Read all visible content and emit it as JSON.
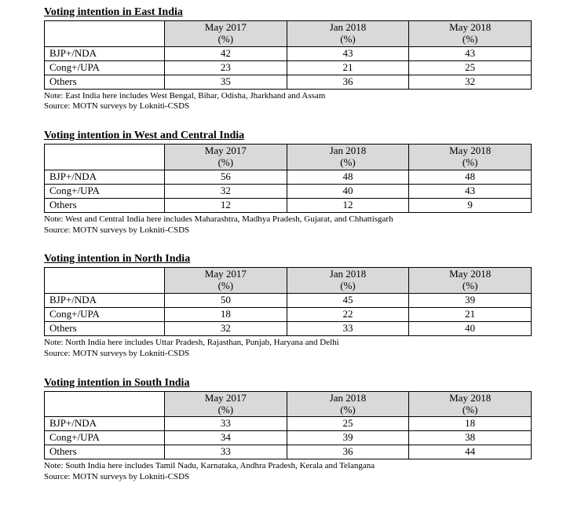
{
  "tables": [
    {
      "title": "Voting intention in East India",
      "periods": [
        "May 2017",
        "Jan 2018",
        "May 2018"
      ],
      "unit": "(%)",
      "rows": [
        {
          "label": "BJP+/NDA",
          "values": [
            "42",
            "43",
            "43"
          ]
        },
        {
          "label": "Cong+/UPA",
          "values": [
            "23",
            "21",
            "25"
          ]
        },
        {
          "label": "Others",
          "values": [
            "35",
            "36",
            "32"
          ]
        }
      ],
      "note": "Note: East India here includes West Bengal, Bihar, Odisha, Jharkhand and Assam",
      "source": "Source: MOTN surveys by Lokniti-CSDS"
    },
    {
      "title": "Voting intention in West and Central India",
      "periods": [
        "May 2017",
        "Jan 2018",
        "May 2018"
      ],
      "unit": "(%)",
      "rows": [
        {
          "label": "BJP+/NDA",
          "values": [
            "56",
            "48",
            "48"
          ]
        },
        {
          "label": "Cong+/UPA",
          "values": [
            "32",
            "40",
            "43"
          ]
        },
        {
          "label": "Others",
          "values": [
            "12",
            "12",
            "9"
          ]
        }
      ],
      "note": "Note: West and Central India here includes Maharashtra, Madhya Pradesh, Gujarat, and Chhattisgarh",
      "source": "Source: MOTN surveys by Lokniti-CSDS"
    },
    {
      "title": "Voting intention in North India",
      "periods": [
        "May 2017",
        "Jan 2018",
        "May 2018"
      ],
      "unit": "(%)",
      "rows": [
        {
          "label": "BJP+/NDA",
          "values": [
            "50",
            "45",
            "39"
          ]
        },
        {
          "label": "Cong+/UPA",
          "values": [
            "18",
            "22",
            "21"
          ]
        },
        {
          "label": "Others",
          "values": [
            "32",
            "33",
            "40"
          ]
        }
      ],
      "note": "Note: North India here includes Uttar Pradesh, Rajasthan, Punjab, Haryana and Delhi",
      "source": "Source: MOTN surveys by Lokniti-CSDS"
    },
    {
      "title": "Voting intention in South India",
      "periods": [
        "May 2017",
        "Jan 2018",
        "May 2018"
      ],
      "unit": "(%)",
      "rows": [
        {
          "label": "BJP+/NDA",
          "values": [
            "33",
            "25",
            "18"
          ]
        },
        {
          "label": "Cong+/UPA",
          "values": [
            "34",
            "39",
            "38"
          ]
        },
        {
          "label": "Others",
          "values": [
            "33",
            "36",
            "44"
          ]
        }
      ],
      "note": "Note: South India here includes Tamil Nadu, Karnataka, Andhra Pradesh, Kerala and Telangana",
      "source": "Source: MOTN surveys by Lokniti-CSDS"
    }
  ],
  "style": {
    "header_bg": "#d9d9d9",
    "border_color": "#000000",
    "font_family": "Times New Roman",
    "title_fontsize_pt": 11,
    "cell_fontsize_pt": 10,
    "note_fontsize_pt": 8
  }
}
